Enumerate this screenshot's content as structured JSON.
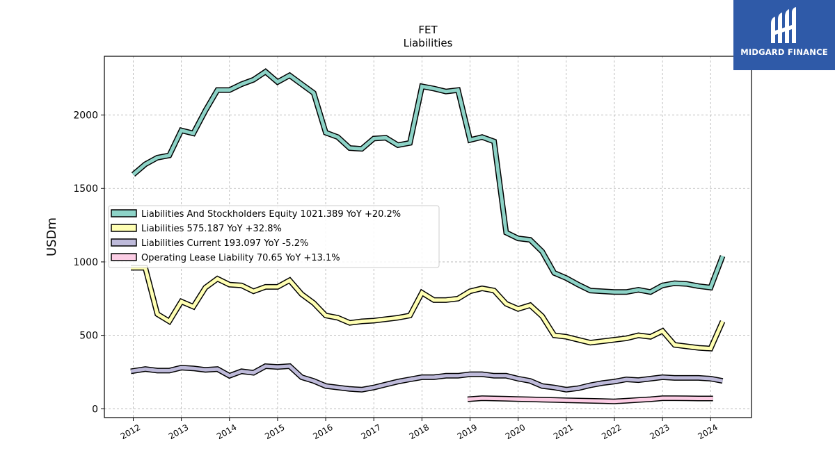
{
  "chart_data": {
    "type": "line",
    "title": "FET",
    "subtitle": "Liabilities",
    "xlabel": "",
    "ylabel": "USDm",
    "xlim": [
      2011.4,
      2024.85
    ],
    "ylim": [
      -60,
      2400
    ],
    "yticks": [
      0,
      500,
      1000,
      1500,
      2000
    ],
    "xticks": [
      "2012",
      "2013",
      "2014",
      "2015",
      "2016",
      "2017",
      "2018",
      "2019",
      "2020",
      "2021",
      "2022",
      "2023",
      "2024"
    ],
    "grid": true,
    "legend_position": "center-left",
    "series": [
      {
        "name": "Liabilities And Stockholders Equity",
        "legend": "Liabilities And Stockholders Equity  1021.389 YoY +20.2%",
        "color": "#8dd3c7",
        "x": [
          2012.0,
          2012.25,
          2012.5,
          2012.75,
          2013.0,
          2013.25,
          2013.5,
          2013.75,
          2014.0,
          2014.25,
          2014.5,
          2014.75,
          2015.0,
          2015.25,
          2015.5,
          2015.75,
          2016.0,
          2016.25,
          2016.5,
          2016.75,
          2017.0,
          2017.25,
          2017.5,
          2017.75,
          2018.0,
          2018.25,
          2018.5,
          2018.75,
          2019.0,
          2019.25,
          2019.5,
          2019.75,
          2020.0,
          2020.25,
          2020.5,
          2020.75,
          2021.0,
          2021.25,
          2021.5,
          2021.75,
          2022.0,
          2022.25,
          2022.5,
          2022.75,
          2023.0,
          2023.25,
          2023.5,
          2023.75,
          2024.0,
          2024.25
        ],
        "y": [
          1595,
          1665,
          1710,
          1725,
          1895,
          1875,
          2030,
          2170,
          2170,
          2210,
          2240,
          2295,
          2225,
          2270,
          2210,
          2150,
          1880,
          1850,
          1775,
          1770,
          1840,
          1845,
          1795,
          1810,
          2195,
          2180,
          2160,
          2170,
          1830,
          1850,
          1820,
          1200,
          1160,
          1150,
          1070,
          925,
          890,
          845,
          805,
          800,
          795,
          795,
          810,
          795,
          840,
          855,
          850,
          835,
          825,
          1040
        ]
      },
      {
        "name": "Liabilities",
        "legend": "Liabilities  575.187 YoY +32.8%",
        "color": "#ffffb3",
        "x": [
          2011.95,
          2012.25,
          2012.5,
          2012.75,
          2013.0,
          2013.25,
          2013.5,
          2013.75,
          2014.0,
          2014.25,
          2014.5,
          2014.75,
          2015.0,
          2015.25,
          2015.5,
          2015.75,
          2016.0,
          2016.25,
          2016.5,
          2016.75,
          2017.0,
          2017.25,
          2017.5,
          2017.75,
          2018.0,
          2018.25,
          2018.5,
          2018.75,
          2019.0,
          2019.25,
          2019.5,
          2019.75,
          2020.0,
          2020.25,
          2020.5,
          2020.75,
          2021.0,
          2021.25,
          2021.5,
          2021.75,
          2022.0,
          2022.25,
          2022.5,
          2022.75,
          2023.0,
          2023.25,
          2023.5,
          2023.75,
          2024.0,
          2024.25
        ],
        "y": [
          960,
          960,
          645,
          595,
          730,
          695,
          825,
          885,
          845,
          840,
          800,
          830,
          830,
          875,
          780,
          720,
          635,
          620,
          585,
          595,
          600,
          610,
          620,
          635,
          790,
          740,
          740,
          750,
          800,
          820,
          805,
          715,
          680,
          705,
          630,
          500,
          490,
          470,
          450,
          460,
          470,
          480,
          500,
          490,
          530,
          435,
          425,
          415,
          410,
          595
        ]
      },
      {
        "name": "Liabilities Current",
        "legend": "Liabilities Current  193.097 YoY -5.2%",
        "color": "#bebada",
        "x": [
          2011.95,
          2012.25,
          2012.5,
          2012.75,
          2013.0,
          2013.25,
          2013.5,
          2013.75,
          2014.0,
          2014.25,
          2014.5,
          2014.75,
          2015.0,
          2015.25,
          2015.5,
          2015.75,
          2016.0,
          2016.25,
          2016.5,
          2016.75,
          2017.0,
          2017.25,
          2017.5,
          2017.75,
          2018.0,
          2018.25,
          2018.5,
          2018.75,
          2019.0,
          2019.25,
          2019.5,
          2019.75,
          2020.0,
          2020.25,
          2020.5,
          2020.75,
          2021.0,
          2021.25,
          2021.5,
          2021.75,
          2022.0,
          2022.25,
          2022.5,
          2022.75,
          2023.0,
          2023.25,
          2023.5,
          2023.75,
          2024.0,
          2024.25
        ],
        "y": [
          255,
          270,
          260,
          260,
          280,
          275,
          265,
          270,
          225,
          255,
          245,
          290,
          285,
          290,
          215,
          190,
          155,
          145,
          135,
          130,
          145,
          165,
          185,
          200,
          215,
          215,
          225,
          225,
          235,
          235,
          225,
          225,
          205,
          190,
          155,
          145,
          130,
          140,
          160,
          175,
          185,
          200,
          195,
          205,
          215,
          210,
          210,
          210,
          205,
          190
        ]
      },
      {
        "name": "Operating Lease Liability",
        "legend": "Operating Lease Liability  70.65 YoY +13.1%",
        "color": "#fccde5",
        "x": [
          2018.95,
          2019.25,
          2019.5,
          2019.75,
          2020.0,
          2020.25,
          2020.5,
          2020.75,
          2021.0,
          2021.25,
          2021.5,
          2021.75,
          2022.0,
          2022.25,
          2022.5,
          2022.75,
          2023.0,
          2023.25,
          2023.5,
          2023.75,
          2024.05
        ],
        "y": [
          65,
          72,
          70,
          68,
          66,
          64,
          62,
          60,
          58,
          56,
          54,
          52,
          50,
          55,
          60,
          65,
          72,
          72,
          71,
          70,
          70
        ]
      }
    ]
  }
}
